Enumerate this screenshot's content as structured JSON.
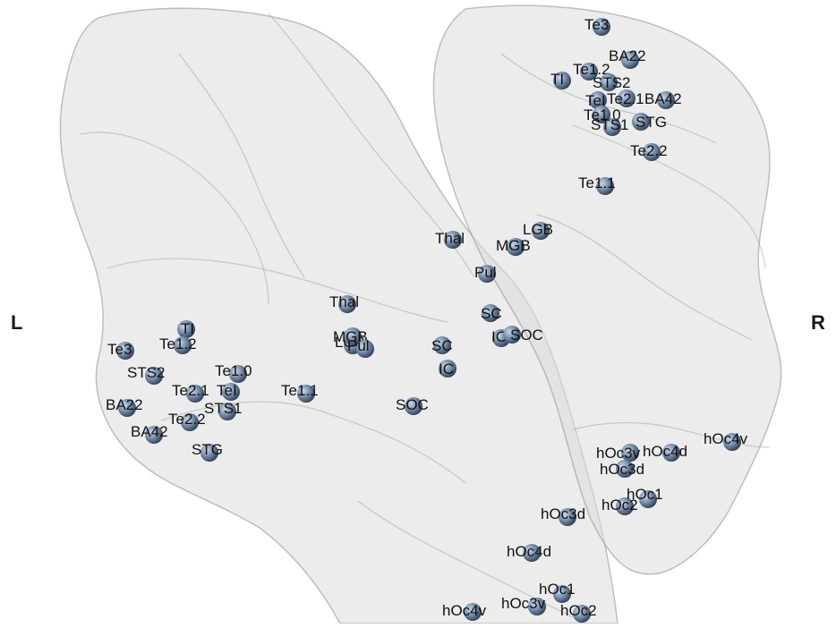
{
  "side_labels": {
    "left": "L",
    "right": "R"
  },
  "colors": {
    "background": "#ffffff",
    "brain_fill": "#dcdcdc",
    "brain_stroke": "#9a9a9a",
    "node_highlight": "#c9d8ea",
    "node_base": "#6f86a3",
    "node_shadow": "#2f3e52",
    "label_text": "#111111"
  },
  "nodes": [
    {
      "id": "r-te3",
      "label": "Te3"
    },
    {
      "id": "r-ba22",
      "label": "BA22"
    },
    {
      "id": "r-te12",
      "label": "Te1.2"
    },
    {
      "id": "r-ti",
      "label": "TI"
    },
    {
      "id": "r-sts2",
      "label": "STS2"
    },
    {
      "id": "r-tei",
      "label": "TeI"
    },
    {
      "id": "r-te21",
      "label": "Te2.1"
    },
    {
      "id": "r-ba42",
      "label": "BA42"
    },
    {
      "id": "r-te10",
      "label": "Te1.0"
    },
    {
      "id": "r-sts1",
      "label": "STS1"
    },
    {
      "id": "r-stg",
      "label": "STG"
    },
    {
      "id": "r-te22",
      "label": "Te2.2"
    },
    {
      "id": "r-te11",
      "label": "Te1.1"
    },
    {
      "id": "r-thal",
      "label": "Thal"
    },
    {
      "id": "r-lgb",
      "label": "LGB"
    },
    {
      "id": "r-mgb",
      "label": "MGB"
    },
    {
      "id": "r-pul",
      "label": "Pul"
    },
    {
      "id": "r-sc",
      "label": "SC"
    },
    {
      "id": "r-ic",
      "label": "IC"
    },
    {
      "id": "r-soc",
      "label": "SOC"
    },
    {
      "id": "l-thal",
      "label": "Thal"
    },
    {
      "id": "l-ti",
      "label": "TI"
    },
    {
      "id": "l-te3",
      "label": "Te3"
    },
    {
      "id": "l-te12",
      "label": "Te1.2"
    },
    {
      "id": "l-lgb",
      "label": "LGB"
    },
    {
      "id": "l-mgb",
      "label": "MGB"
    },
    {
      "id": "l-pul",
      "label": "Pul"
    },
    {
      "id": "l-sc",
      "label": "SC"
    },
    {
      "id": "l-ic",
      "label": "IC"
    },
    {
      "id": "l-sts2",
      "label": "STS2"
    },
    {
      "id": "l-te10",
      "label": "Te1.0"
    },
    {
      "id": "l-te21",
      "label": "Te2.1"
    },
    {
      "id": "l-tei",
      "label": "TeI"
    },
    {
      "id": "l-te11",
      "label": "Te1.1"
    },
    {
      "id": "l-ba22",
      "label": "BA22"
    },
    {
      "id": "l-sts1",
      "label": "STS1"
    },
    {
      "id": "l-soc",
      "label": "SOC"
    },
    {
      "id": "l-te22",
      "label": "Te2.2"
    },
    {
      "id": "l-ba42",
      "label": "BA42"
    },
    {
      "id": "l-stg",
      "label": "STG"
    },
    {
      "id": "r-hoc3v",
      "label": "hOc3v"
    },
    {
      "id": "r-hoc4d",
      "label": "hOc4d"
    },
    {
      "id": "r-hoc4v",
      "label": "hOc4v"
    },
    {
      "id": "r-hoc3d",
      "label": "hOc3d"
    },
    {
      "id": "r-hoc2",
      "label": "hOc2"
    },
    {
      "id": "r-hoc1",
      "label": "hOc1"
    },
    {
      "id": "l-hoc3d",
      "label": "hOc3d"
    },
    {
      "id": "l-hoc4d",
      "label": "hOc4d"
    },
    {
      "id": "l-hoc1",
      "label": "hOc1"
    },
    {
      "id": "l-hoc4v",
      "label": "hOc4v"
    },
    {
      "id": "l-hoc3v",
      "label": "hOc3v"
    },
    {
      "id": "l-hoc2",
      "label": "hOc2"
    }
  ]
}
